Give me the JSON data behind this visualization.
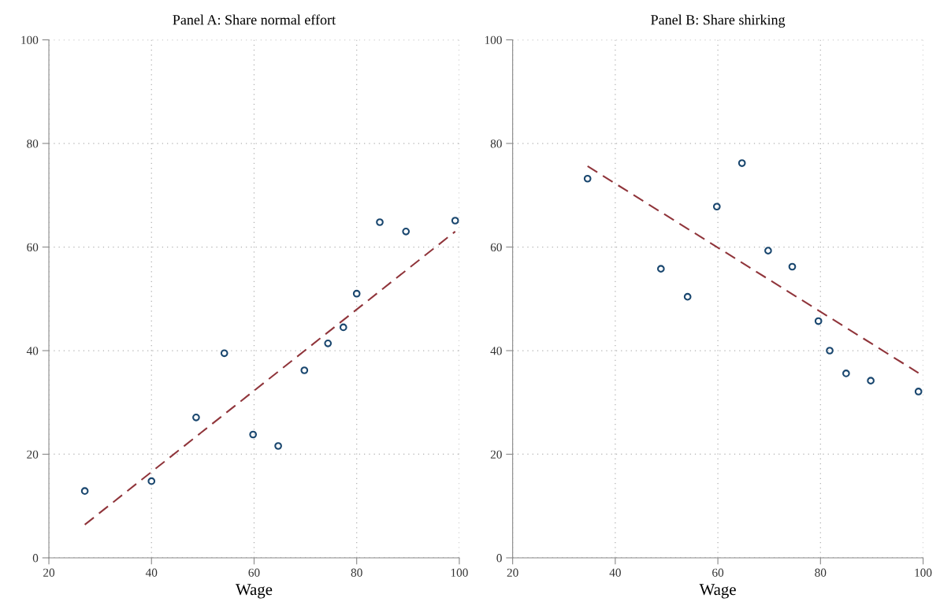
{
  "chart_data": [
    {
      "type": "scatter",
      "title": "Panel A: Share normal effort",
      "xlabel": "Wage",
      "xlim": [
        20,
        100
      ],
      "ylim": [
        0,
        100
      ],
      "xticks": [
        20,
        40,
        60,
        80,
        100
      ],
      "yticks": [
        0,
        20,
        40,
        60,
        80,
        100
      ],
      "grid": true,
      "series": [
        {
          "color": "#1a476f",
          "marker": "circle",
          "x": [
            27.0,
            40.0,
            48.7,
            54.2,
            59.8,
            64.7,
            69.8,
            74.4,
            77.4,
            80.0,
            84.5,
            89.6,
            99.2
          ],
          "values": [
            12.9,
            14.8,
            27.1,
            39.5,
            23.8,
            21.6,
            36.2,
            41.4,
            44.5,
            51.0,
            64.8,
            63.0,
            65.1
          ]
        },
        {
          "type": "line",
          "color": "#90353b",
          "line_style": "dashed",
          "x": [
            27.0,
            99.2
          ],
          "values": [
            6.4,
            63.0
          ]
        }
      ]
    },
    {
      "type": "scatter",
      "title": "Panel B: Share shirking",
      "xlabel": "Wage",
      "xlim": [
        20,
        100
      ],
      "ylim": [
        0,
        100
      ],
      "xticks": [
        20,
        40,
        60,
        80,
        100
      ],
      "yticks": [
        0,
        20,
        40,
        60,
        80,
        100
      ],
      "grid": true,
      "series": [
        {
          "color": "#1a476f",
          "marker": "circle",
          "x": [
            34.6,
            48.9,
            54.1,
            59.8,
            64.7,
            69.8,
            74.5,
            79.6,
            81.8,
            85.0,
            89.8,
            99.1
          ],
          "values": [
            73.2,
            55.8,
            50.4,
            67.8,
            76.2,
            59.3,
            56.2,
            45.7,
            40.0,
            35.6,
            34.2,
            32.1
          ]
        },
        {
          "type": "line",
          "color": "#90353b",
          "line_style": "dashed",
          "x": [
            34.6,
            99.1
          ],
          "values": [
            75.6,
            35.7
          ]
        }
      ]
    }
  ]
}
